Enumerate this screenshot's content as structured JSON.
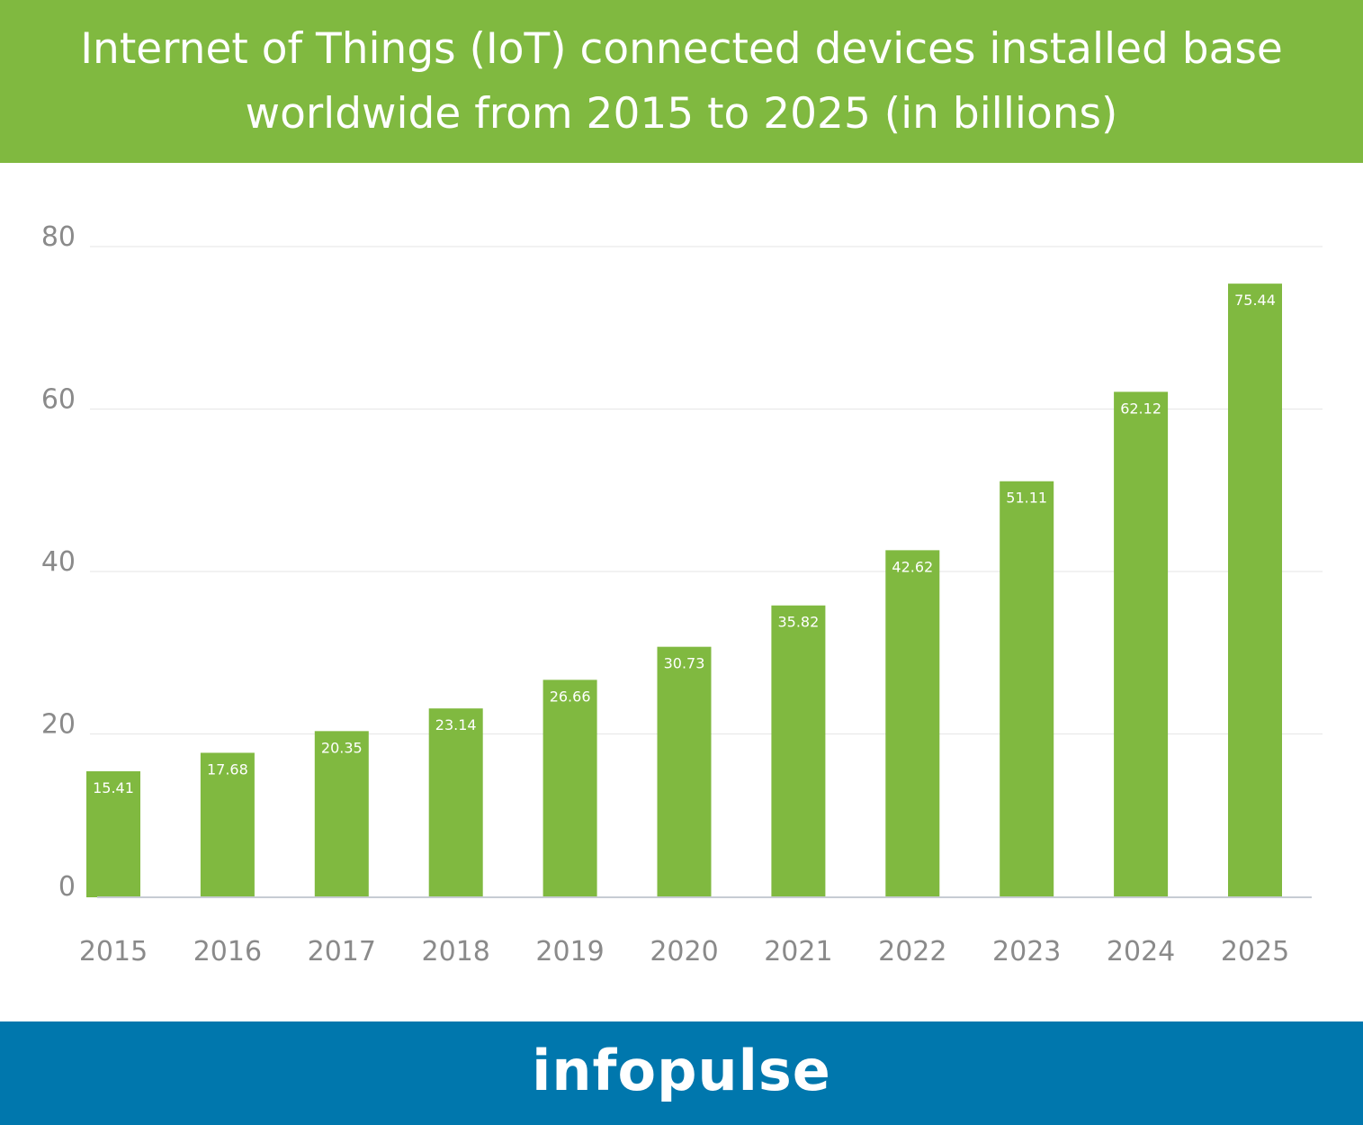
{
  "header": {
    "title": "Internet of Things (IoT) connected devices installed base worldwide from 2015 to 2025 (in billions)"
  },
  "footer": {
    "brand": "infopulse"
  },
  "colors": {
    "header_bg": "#80b940",
    "bar": "#80b940",
    "footer_bg": "#0077ad",
    "gridline": "#e6e6e6",
    "axis": "#c7ccd3",
    "tick_text": "#8a8a8a"
  },
  "chart_data": {
    "type": "bar",
    "title": "Internet of Things (IoT) connected devices installed base worldwide from 2015 to 2025 (in billions)",
    "xlabel": "",
    "ylabel": "",
    "categories": [
      "2015",
      "2016",
      "2017",
      "2018",
      "2019",
      "2020",
      "2021",
      "2022",
      "2023",
      "2024",
      "2025"
    ],
    "values": [
      15.41,
      17.68,
      20.35,
      23.14,
      26.66,
      30.73,
      35.82,
      42.62,
      51.11,
      62.12,
      75.44
    ],
    "value_labels": [
      "15.41",
      "17.68",
      "20.35",
      "23.14",
      "26.66",
      "30.73",
      "35.82",
      "42.62",
      "51.11",
      "62.12",
      "75.44"
    ],
    "ylim": [
      0,
      80
    ],
    "yticks": [
      "0",
      "20",
      "40",
      "60",
      "80"
    ],
    "grid": true,
    "legend": "none"
  }
}
